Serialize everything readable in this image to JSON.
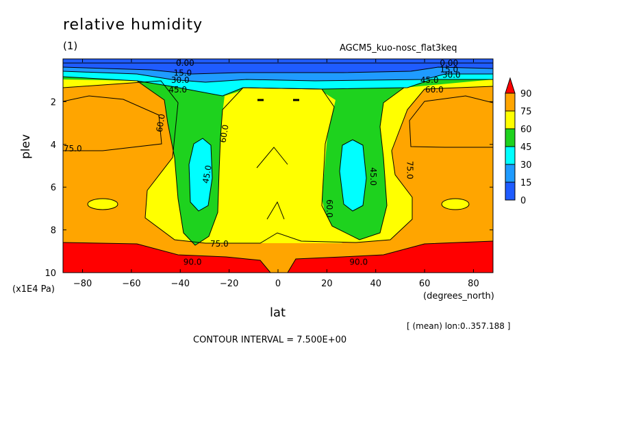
{
  "chart_data": {
    "type": "contour",
    "title": "relative humidity",
    "subtitle": "(1)",
    "experiment": "AGCM5_kuo-nosc_flat3keq",
    "xlabel": "lat",
    "x_unit": "(degrees_north)",
    "ylabel": "plev",
    "y_unit": "(x1E4 Pa)",
    "xlim": [
      -88,
      88
    ],
    "ylim": [
      10,
      0
    ],
    "x_ticks": [
      -80,
      -60,
      -40,
      -20,
      0,
      20,
      40,
      60,
      80
    ],
    "y_ticks": [
      2,
      4,
      6,
      8,
      10
    ],
    "mean_note": "[ (mean) lon:0..357.188 ]",
    "contour_interval_text": "CONTOUR INTERVAL = 7.500E+00",
    "colorbar": {
      "levels": [
        0,
        15,
        30,
        45,
        60,
        75,
        90
      ],
      "colors": [
        "#1f5cff",
        "#1f9bff",
        "#00ffff",
        "#1ed21e",
        "#ffff00",
        "#ffa500",
        "#ff0000"
      ]
    },
    "contour_labels": [
      {
        "text": "0.00",
        "lat": -38,
        "plev": 0.2
      },
      {
        "text": "15.0",
        "lat": -39,
        "plev": 0.65
      },
      {
        "text": "30.0",
        "lat": -40,
        "plev": 1.0
      },
      {
        "text": "45.0",
        "lat": -41,
        "plev": 1.45
      },
      {
        "text": "60.0",
        "lat": -48,
        "plev": 3.0
      },
      {
        "text": "60.0",
        "lat": -22,
        "plev": 3.5
      },
      {
        "text": "75.0",
        "lat": -84,
        "plev": 4.2
      },
      {
        "text": "45.0",
        "lat": -29,
        "plev": 5.4
      },
      {
        "text": "75.0",
        "lat": -24,
        "plev": 8.65
      },
      {
        "text": "90.0",
        "lat": -35,
        "plev": 9.5
      },
      {
        "text": "0.00",
        "lat": 70,
        "plev": 0.2
      },
      {
        "text": "15.0",
        "lat": 70,
        "plev": 0.5
      },
      {
        "text": "30.0",
        "lat": 71,
        "plev": 0.75
      },
      {
        "text": "45.0",
        "lat": 62,
        "plev": 1.0
      },
      {
        "text": "60.0",
        "lat": 64,
        "plev": 1.45
      },
      {
        "text": "75.0",
        "lat": 54,
        "plev": 5.2
      },
      {
        "text": "45.0",
        "lat": 39,
        "plev": 5.5
      },
      {
        "text": "60.0",
        "lat": 21,
        "plev": 7.0
      },
      {
        "text": "90.0",
        "lat": 33,
        "plev": 9.5
      }
    ]
  }
}
